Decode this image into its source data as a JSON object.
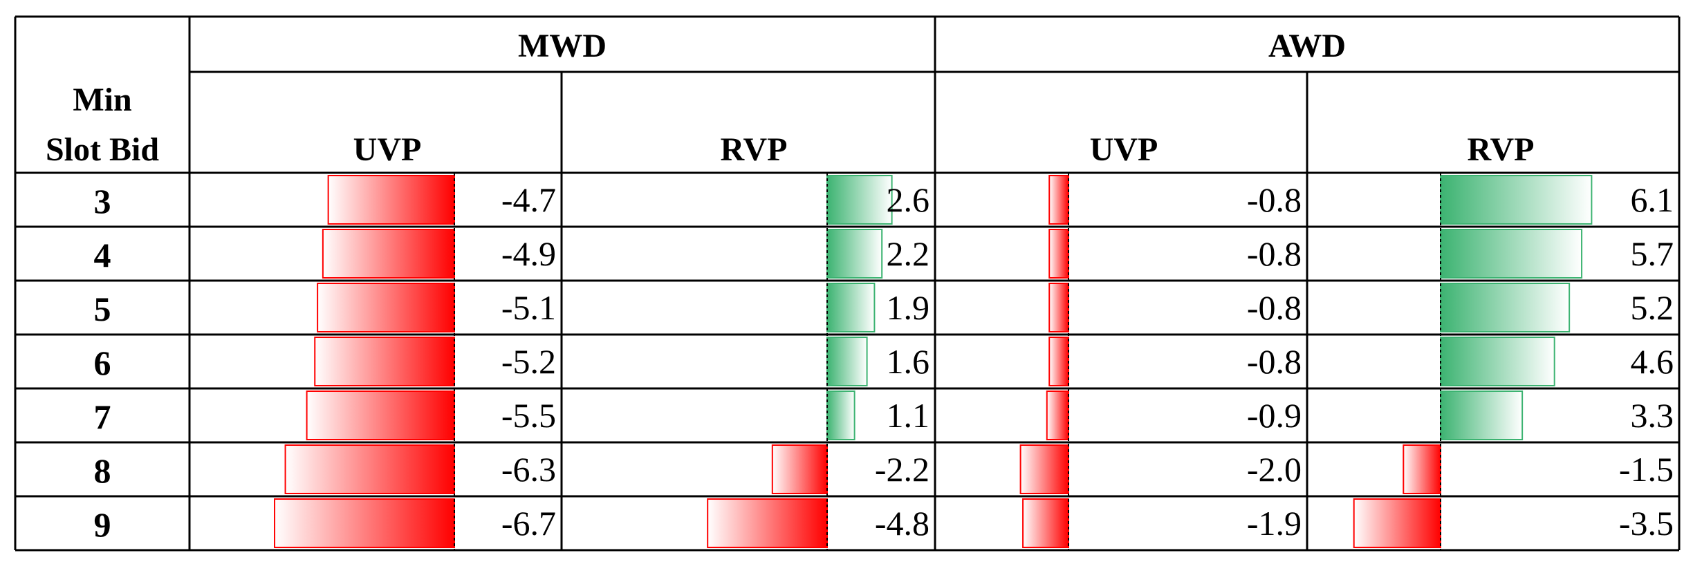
{
  "header": {
    "group_mwd": "MWD",
    "group_awd": "AWD",
    "row_label_line1": "Min",
    "row_label_line2": "Slot Bid",
    "col_uvp_mwd": "UVP",
    "col_rvp_mwd": "RVP",
    "col_uvp_awd": "UVP",
    "col_rvp_awd": "RVP"
  },
  "colors": {
    "negative": "#ff0000",
    "positive": "#3cb371",
    "grid": "#000000"
  },
  "chart_data": {
    "type": "table",
    "row_header": "Min Slot Bid",
    "rows": [
      "3",
      "4",
      "5",
      "6",
      "7",
      "8",
      "9"
    ],
    "columns": [
      {
        "group": "MWD",
        "name": "UVP",
        "values": [
          -4.7,
          -4.9,
          -5.1,
          -5.2,
          -5.5,
          -6.3,
          -6.7
        ],
        "labels": [
          "-4.7",
          "-4.9",
          "-5.1",
          "-5.2",
          "-5.5",
          "-6.3",
          "-6.7"
        ]
      },
      {
        "group": "MWD",
        "name": "RVP",
        "values": [
          2.6,
          2.2,
          1.9,
          1.6,
          1.1,
          -2.2,
          -4.8
        ],
        "labels": [
          "2.6",
          "2.2",
          "1.9",
          "1.6",
          "1.1",
          "-2.2",
          "-4.8"
        ]
      },
      {
        "group": "AWD",
        "name": "UVP",
        "values": [
          -0.8,
          -0.8,
          -0.8,
          -0.8,
          -0.9,
          -2.0,
          -1.9
        ],
        "labels": [
          "-0.8",
          "-0.8",
          "-0.8",
          "-0.8",
          "-0.9",
          "-2.0",
          "-1.9"
        ]
      },
      {
        "group": "AWD",
        "name": "RVP",
        "values": [
          6.1,
          5.7,
          5.2,
          4.6,
          3.3,
          -1.5,
          -3.5
        ],
        "labels": [
          "6.1",
          "5.7",
          "5.2",
          "4.6",
          "3.3",
          "-1.5",
          "-3.5"
        ]
      }
    ],
    "data_bars": true
  }
}
